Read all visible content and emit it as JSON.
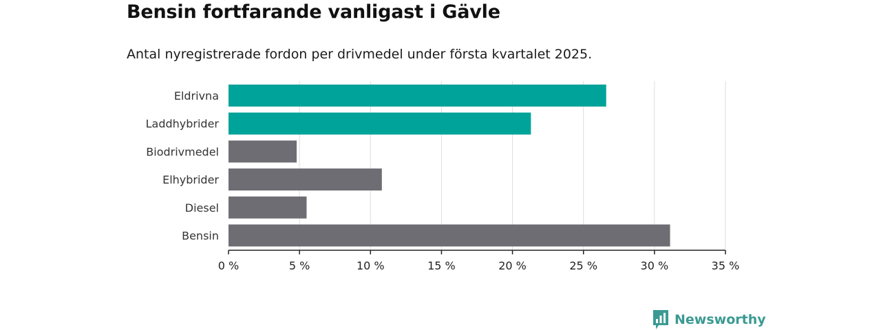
{
  "header": {
    "title": "Bensin fortfarande vanligast i Gävle",
    "subtitle": "Antal nyregistrerade fordon per drivmedel under första kvartalet 2025."
  },
  "brand": {
    "name": "Newsworthy",
    "icon": "bar-chart-logo-icon"
  },
  "colors": {
    "highlight": "#00a39a",
    "default": "#6e6d73",
    "grid": "#dddddd",
    "axis": "#222222"
  },
  "chart_data": {
    "type": "bar",
    "orientation": "horizontal",
    "categories": [
      "Eldrivna",
      "Laddhybrider",
      "Biodrivmedel",
      "Elhybrider",
      "Diesel",
      "Bensin"
    ],
    "values": [
      26.6,
      21.3,
      4.8,
      10.8,
      5.5,
      31.1
    ],
    "highlighted": [
      true,
      true,
      false,
      false,
      false,
      false
    ],
    "xlim": [
      0,
      35
    ],
    "xticks": [
      0,
      5,
      10,
      15,
      20,
      25,
      30,
      35
    ],
    "xtick_labels": [
      "0 %",
      "5 %",
      "10 %",
      "15 %",
      "20 %",
      "25 %",
      "30 %",
      "35 %"
    ],
    "grid": true
  }
}
